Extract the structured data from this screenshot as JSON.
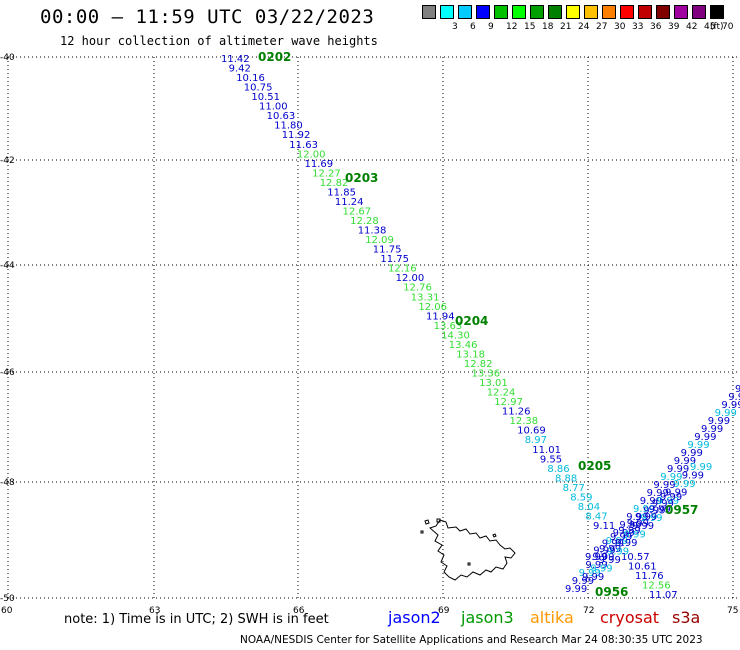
{
  "header": {
    "title": "00:00 – 11:59 UTC 03/22/2023",
    "subtitle": "12 hour collection of altimeter wave heights"
  },
  "legend": {
    "unit": "(ft)",
    "bins": [
      {
        "color": "#808080",
        "label": ""
      },
      {
        "color": "#00ffff",
        "label": "3"
      },
      {
        "color": "#00ccff",
        "label": "6"
      },
      {
        "color": "#0000ff",
        "label": "9"
      },
      {
        "color": "#00c000",
        "label": "12"
      },
      {
        "color": "#00ff00",
        "label": "15"
      },
      {
        "color": "#00a000",
        "label": "18"
      },
      {
        "color": "#008000",
        "label": "21"
      },
      {
        "color": "#ffff00",
        "label": "24"
      },
      {
        "color": "#ffc000",
        "label": "27"
      },
      {
        "color": "#ff8000",
        "label": "30"
      },
      {
        "color": "#ff0000",
        "label": "33"
      },
      {
        "color": "#c00000",
        "label": "36"
      },
      {
        "color": "#800000",
        "label": "39"
      },
      {
        "color": "#a000a0",
        "label": "42"
      },
      {
        "color": "#800080",
        "label": "45"
      },
      {
        "color": "#000000",
        "label": "70"
      }
    ]
  },
  "axes": {
    "lon_labels": [
      "60",
      "63",
      "66",
      "69",
      "72",
      "75"
    ],
    "lat_labels": [
      "-40",
      "-42",
      "-44",
      "-46",
      "-48",
      "-50"
    ]
  },
  "tracks": {
    "main": {
      "values": [
        "11.42",
        "9.42",
        "10.16",
        "10.75",
        "10.51",
        "11.00",
        "10.63",
        "11.80",
        "11.92",
        "11.63",
        "12.00",
        "11.69",
        "12.27",
        "12.82",
        "11.85",
        "11.24",
        "12.67",
        "12.28",
        "11.38",
        "12.09",
        "11.75",
        "11.75",
        "12.16",
        "12.00",
        "12.76",
        "13.31",
        "12.06",
        "11.94",
        "13.63",
        "14.30",
        "13.46",
        "13.18",
        "12.82",
        "13.36",
        "13.01",
        "12.24",
        "12.97",
        "11.26",
        "12.38",
        "10.69",
        "8.97",
        "11.01",
        "9.55",
        "8.86",
        "8.88",
        "8.77",
        "8.59",
        "8.04",
        "8.47",
        "9.11"
      ],
      "colors": [
        "#0000cc",
        "#0000cc",
        "#0000cc",
        "#0000cc",
        "#0000cc",
        "#0000cc",
        "#0000cc",
        "#0000cc",
        "#0000cc",
        "#0000cc",
        "#33dd33",
        "#0000cc",
        "#33dd33",
        "#33dd33",
        "#0000cc",
        "#0000cc",
        "#33dd33",
        "#33dd33",
        "#0000cc",
        "#33dd33",
        "#0000cc",
        "#0000cc",
        "#33dd33",
        "#0000cc",
        "#33dd33",
        "#33dd33",
        "#33dd33",
        "#0000cc",
        "#33dd33",
        "#33dd33",
        "#33dd33",
        "#33dd33",
        "#33dd33",
        "#33dd33",
        "#33dd33",
        "#33dd33",
        "#33dd33",
        "#0000cc",
        "#33dd33",
        "#0000cc",
        "#00bbdd",
        "#0000cc",
        "#0000cc",
        "#00bbdd",
        "#00bbdd",
        "#00bbdd",
        "#00bbdd",
        "#00bbdd",
        "#00bbdd",
        "#0000cc"
      ]
    },
    "lower": {
      "values": [
        "10.57",
        "10.61",
        "11.76",
        "12.56",
        "11.07"
      ],
      "colors": [
        "#0000cc",
        "#0000cc",
        "#0000cc",
        "#33dd33",
        "#0000cc"
      ]
    },
    "time_labels": [
      "0202",
      "0203",
      "0204",
      "0205",
      "0956",
      "0957"
    ]
  },
  "note": "note:  1) Time is in UTC;  2) SWH is in feet",
  "satellites": [
    {
      "name": "jason2",
      "color": "#0000ff"
    },
    {
      "name": "jason3",
      "color": "#009900"
    },
    {
      "name": "altika",
      "color": "#ff9900"
    },
    {
      "name": "cryosat",
      "color": "#cc0000"
    },
    {
      "name": "s3a",
      "color": "#990000"
    }
  ],
  "footer": "NOAA/NESDIS Center for Satellite Applications and Research    Mar 24 08:30:35 UTC 2023"
}
